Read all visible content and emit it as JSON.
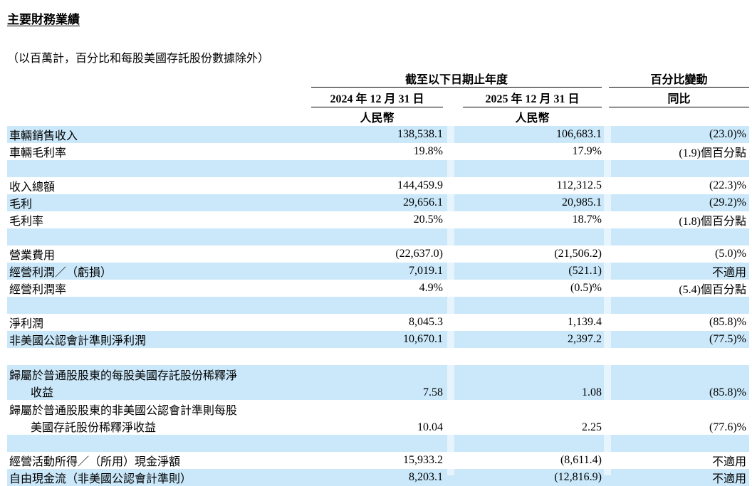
{
  "page": {
    "title": "主要財務業績",
    "subtitle": "（以百萬計，百分比和每股美國存託股份數據除外）"
  },
  "colors": {
    "row_shade": "#cae8fa"
  },
  "table": {
    "header": {
      "period_group": "截至以下日期止年度",
      "change_group": "百分比變動",
      "col_2024": "2024 年 12 月 31 日",
      "col_2025": "2025 年 12 月 31 日",
      "yoy": "同比",
      "currency_2024": "人民幣",
      "currency_2025": "人民幣"
    },
    "rows": [
      {
        "label": "車輛銷售收入",
        "label2": "",
        "v2024": "138,538.1",
        "v2025": "106,683.1",
        "yoy": "(23.0)%",
        "shaded": true,
        "blank": false
      },
      {
        "label": "車輛毛利率",
        "label2": "",
        "v2024": "19.8%",
        "v2025": "17.9%",
        "yoy": "(1.9)個百分點",
        "shaded": false,
        "blank": false
      },
      {
        "label": "",
        "label2": "",
        "v2024": "",
        "v2025": "",
        "yoy": "",
        "shaded": true,
        "blank": true
      },
      {
        "label": "收入總額",
        "label2": "",
        "v2024": "144,459.9",
        "v2025": "112,312.5",
        "yoy": "(22.3)%",
        "shaded": false,
        "blank": false
      },
      {
        "label": "毛利",
        "label2": "",
        "v2024": "29,656.1",
        "v2025": "20,985.1",
        "yoy": "(29.2)%",
        "shaded": true,
        "blank": false
      },
      {
        "label": "毛利率",
        "label2": "",
        "v2024": "20.5%",
        "v2025": "18.7%",
        "yoy": "(1.8)個百分點",
        "shaded": false,
        "blank": false
      },
      {
        "label": "",
        "label2": "",
        "v2024": "",
        "v2025": "",
        "yoy": "",
        "shaded": true,
        "blank": true
      },
      {
        "label": "營業費用",
        "label2": "",
        "v2024": "(22,637.0)",
        "v2025": "(21,506.2)",
        "yoy": "(5.0)%",
        "shaded": false,
        "blank": false
      },
      {
        "label": "經營利潤／（虧損）",
        "label2": "",
        "v2024": "7,019.1",
        "v2025": "(521.1)",
        "yoy": "不適用",
        "shaded": true,
        "blank": false
      },
      {
        "label": "經營利潤率",
        "label2": "",
        "v2024": "4.9%",
        "v2025": "(0.5)%",
        "yoy": "(5.4)個百分點",
        "shaded": false,
        "blank": false
      },
      {
        "label": "",
        "label2": "",
        "v2024": "",
        "v2025": "",
        "yoy": "",
        "shaded": true,
        "blank": true
      },
      {
        "label": "淨利潤",
        "label2": "",
        "v2024": "8,045.3",
        "v2025": "1,139.4",
        "yoy": "(85.8)%",
        "shaded": false,
        "blank": false
      },
      {
        "label": "非美國公認會計準則淨利潤",
        "label2": "",
        "v2024": "10,670.1",
        "v2025": "2,397.2",
        "yoy": "(77.5)%",
        "shaded": true,
        "blank": false
      },
      {
        "label": "",
        "label2": "",
        "v2024": "",
        "v2025": "",
        "yoy": "",
        "shaded": false,
        "blank": true
      },
      {
        "label": "歸屬於普通股股東的每股美國存託股份稀釋淨",
        "label2": "收益",
        "v2024": "7.58",
        "v2025": "1.08",
        "yoy": "(85.8)%",
        "shaded": true,
        "blank": false
      },
      {
        "label": "歸屬於普通股股東的非美國公認會計準則每股",
        "label2": "美國存託股份稀釋淨收益",
        "v2024": "10.04",
        "v2025": "2.25",
        "yoy": "(77.6)%",
        "shaded": false,
        "blank": false
      },
      {
        "label": "",
        "label2": "",
        "v2024": "",
        "v2025": "",
        "yoy": "",
        "shaded": true,
        "blank": true
      },
      {
        "label": "經營活動所得／（所用）現金淨額",
        "label2": "",
        "v2024": "15,933.2",
        "v2025": "(8,611.4)",
        "yoy": "不適用",
        "shaded": false,
        "blank": false
      },
      {
        "label": "自由現金流（非美國公認會計準則）",
        "label2": "",
        "v2024": "8,203.1",
        "v2025": "(12,816.9)",
        "yoy": "不適用",
        "shaded": true,
        "blank": false
      }
    ]
  }
}
